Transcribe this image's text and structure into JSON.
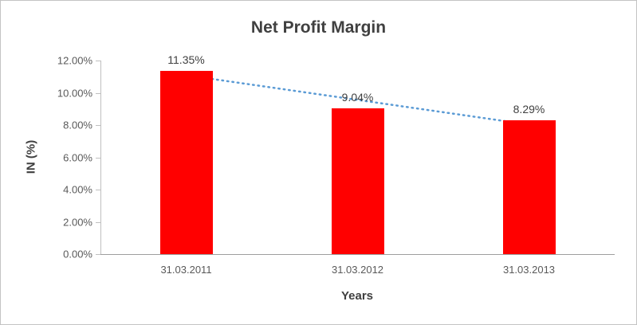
{
  "chart_data": {
    "type": "bar",
    "title": "Net Profit Margin",
    "categories": [
      "31.03.2011",
      "31.03.2012",
      "31.03.2013"
    ],
    "values": [
      11.35,
      9.04,
      8.29
    ],
    "data_labels": [
      "11.35%",
      "9.04%",
      "8.29%"
    ],
    "xlabel": "Years",
    "ylabel": "IN (%)",
    "ylim": [
      0,
      12
    ],
    "y_ticks": [
      0,
      2,
      4,
      6,
      8,
      10,
      12
    ],
    "y_tick_labels": [
      "0.00%",
      "2.00%",
      "4.00%",
      "6.00%",
      "8.00%",
      "10.00%",
      "12.00%"
    ],
    "grid": false,
    "legend": "none",
    "bar_color": "#ff0000",
    "trendline": {
      "type": "linear",
      "style": "dotted",
      "color": "#5b9bd5"
    }
  }
}
